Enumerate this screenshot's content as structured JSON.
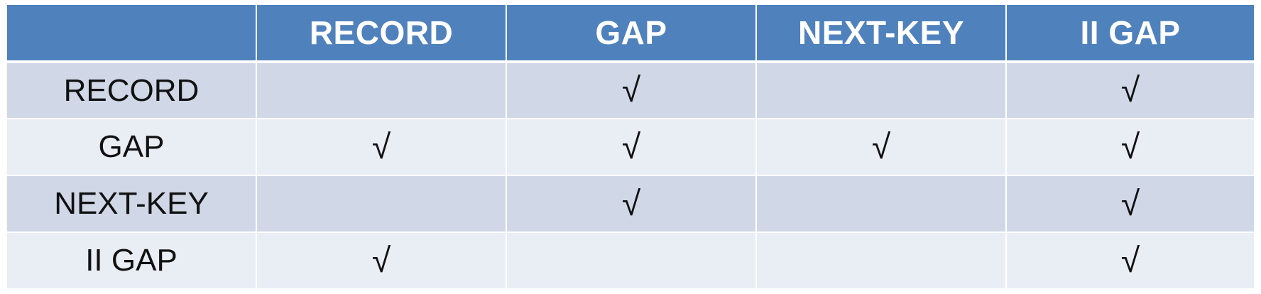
{
  "table": {
    "corner": "",
    "columns": [
      "RECORD",
      "GAP",
      "NEXT-KEY",
      "II GAP"
    ],
    "rows": [
      {
        "label": "RECORD",
        "cells": [
          "",
          "√",
          "",
          "√"
        ]
      },
      {
        "label": "GAP",
        "cells": [
          "√",
          "√",
          "√",
          "√"
        ]
      },
      {
        "label": "NEXT-KEY",
        "cells": [
          "",
          "√",
          "",
          "√"
        ]
      },
      {
        "label": "II GAP",
        "cells": [
          "√",
          "",
          "",
          "√"
        ]
      }
    ]
  },
  "colors": {
    "header_bg": "#4f81bd",
    "row_odd_bg": "#d0d8e8",
    "row_even_bg": "#e9edf4"
  }
}
